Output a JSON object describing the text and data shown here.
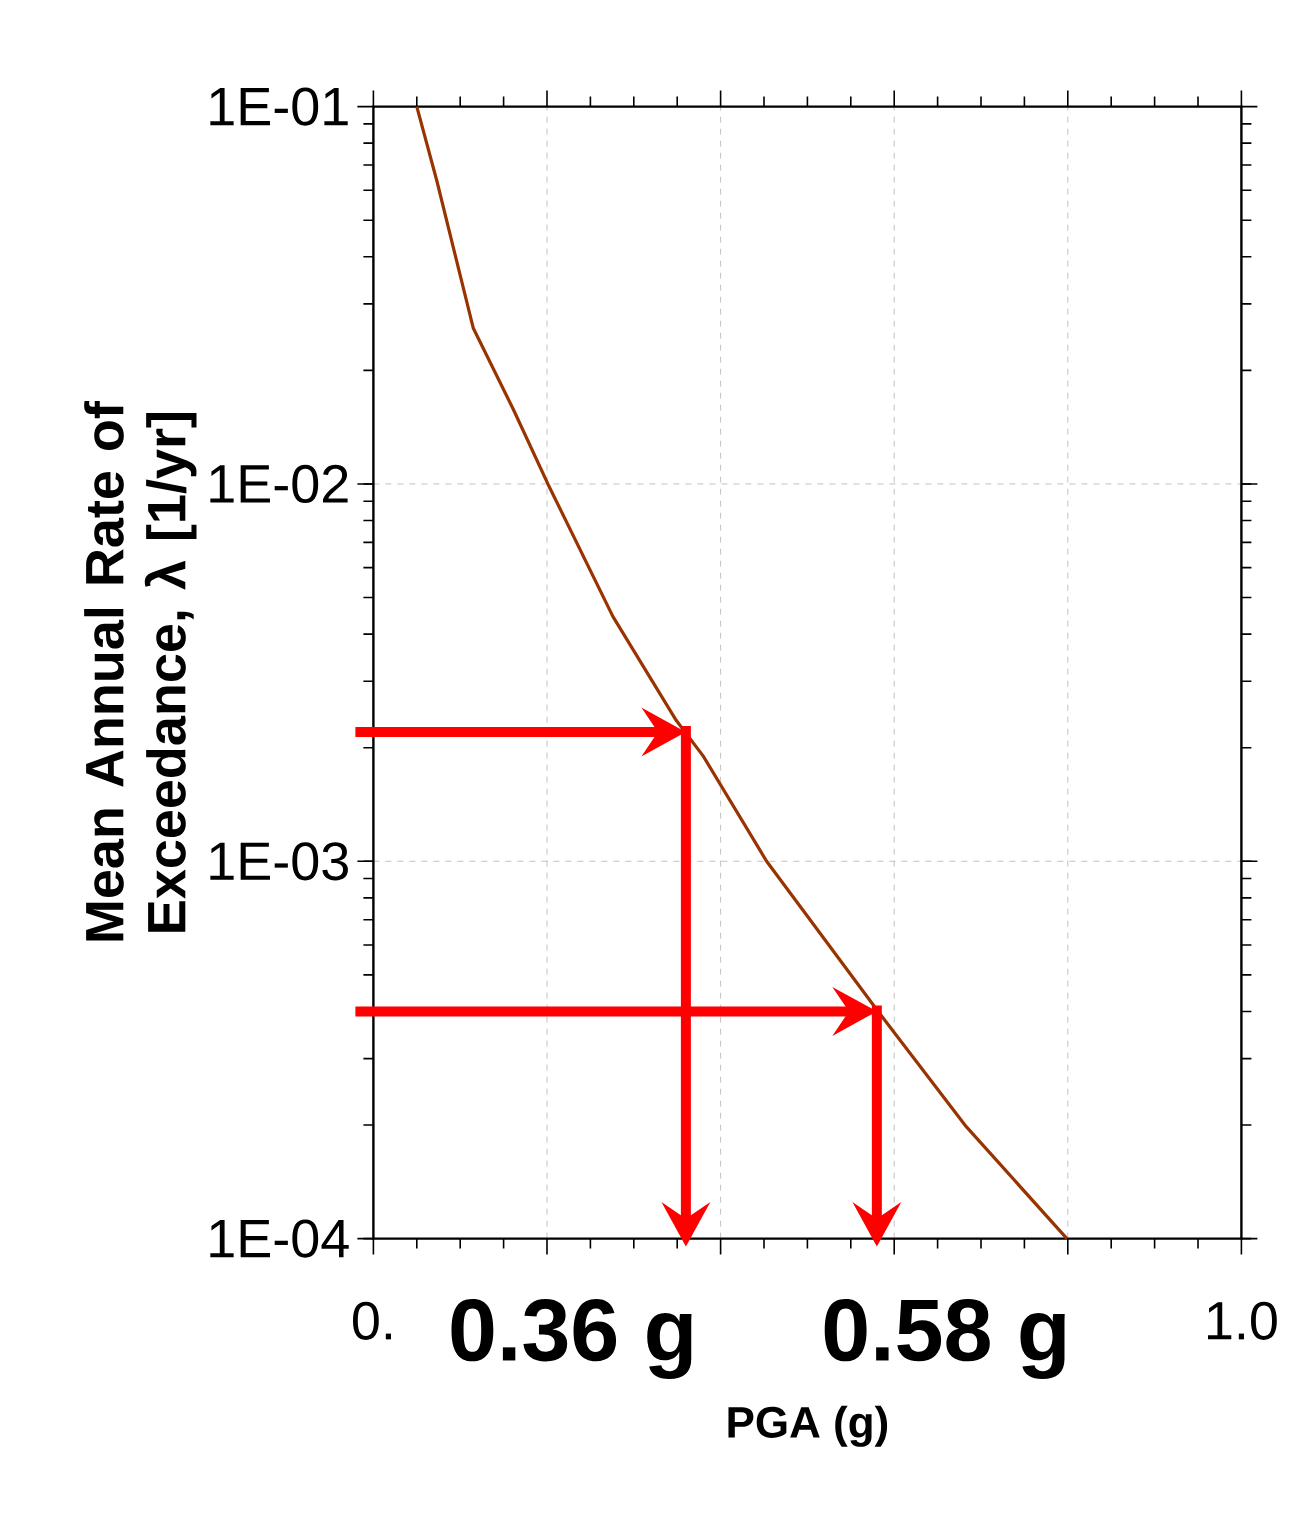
{
  "chart_data": {
    "type": "line",
    "xlabel": "PGA (g)",
    "ylabel": "Mean Annual Rate of Exceedance, λ [1/yr]",
    "x": [
      0.05,
      0.073,
      0.115,
      0.161,
      0.201,
      0.276,
      0.349,
      0.38,
      0.453,
      0.58,
      0.683,
      0.799
    ],
    "series": [
      {
        "color": "#993300",
        "values": [
          0.1,
          0.0637,
          0.0259,
          0.0158,
          0.01,
          0.00445,
          0.00236,
          0.0019,
          0.001,
          0.000404,
          0.000198,
          0.0001
        ]
      }
    ],
    "xlim": [
      0,
      1
    ],
    "ylim": [
      0.0001,
      0.1
    ],
    "xticks": [
      {
        "value": 0,
        "label": "0."
      },
      {
        "value": 0.2,
        "label": null
      },
      {
        "value": 0.4,
        "label": null
      },
      {
        "value": 0.6,
        "label": null
      },
      {
        "value": 0.8,
        "label": null
      },
      {
        "value": 1,
        "label": "1.0"
      }
    ],
    "yticks": [
      {
        "value": 0.0001,
        "label": "1E-04"
      },
      {
        "value": 0.001,
        "label": "1E-03"
      },
      {
        "value": 0.01,
        "label": "1E-02"
      },
      {
        "value": 0.1,
        "label": "1E-01"
      }
    ],
    "log": "y",
    "grid": true,
    "marker": "none",
    "line_style": "solid",
    "annotations": [
      {
        "text": "0.36 g",
        "x": 0.36,
        "y": 0.0022
      },
      {
        "text": "0.58 g",
        "x": 0.58,
        "y": 0.0004
      }
    ]
  }
}
